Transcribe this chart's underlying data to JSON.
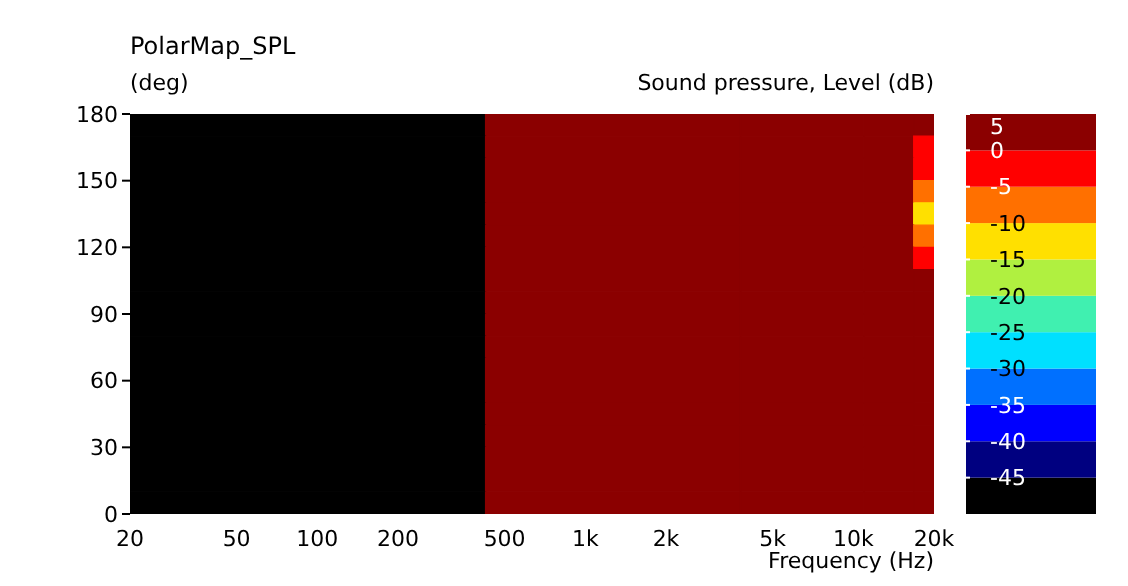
{
  "chart_data": {
    "type": "heatmap",
    "title": "PolarMap_SPL",
    "ylabel": "(deg)",
    "xlabel": "Frequency  (Hz)",
    "clabel": "Sound pressure, Level  (dB)",
    "log": "x",
    "x": [
      100,
      1800,
      8000,
      15000,
      18800
    ],
    "xlim": [
      20,
      20000
    ],
    "xticks": [
      20,
      50,
      100,
      200,
      500,
      {
        "value": 1000,
        "label": "1k"
      },
      {
        "value": 2000,
        "label": "2k"
      },
      {
        "value": 5000,
        "label": "5k"
      },
      {
        "value": 10000,
        "label": "10k"
      },
      {
        "value": 20000,
        "label": "20k"
      }
    ],
    "ylim": [
      0,
      180
    ],
    "yticks": [
      0,
      30,
      60,
      90,
      120,
      150,
      180
    ],
    "clim": [
      -50,
      5
    ],
    "cticks": [
      -45,
      -40,
      -35,
      -30,
      -25,
      -20,
      -15,
      -10,
      -5,
      0,
      5
    ],
    "colors": [
      "#000000",
      "#000080",
      "#0000ff",
      "#0070ff",
      "#00e0ff",
      "#40f0b0",
      "#b0f040",
      "#ffe000",
      "#ff7000",
      "#ff0000",
      "#8b0000"
    ],
    "cells": [
      [
        -50,
        3,
        3,
        3,
        3
      ],
      [
        -50,
        3,
        3,
        3,
        -3
      ],
      [
        -50,
        3,
        3,
        3,
        -3
      ],
      [
        -50,
        3,
        3,
        3,
        -7
      ],
      [
        -50,
        3,
        3,
        3,
        -12
      ],
      [
        -50,
        3,
        3,
        3,
        -7
      ],
      [
        -50,
        3,
        3,
        3,
        -3
      ],
      [
        -50,
        3,
        3,
        3,
        3
      ],
      [
        -50,
        3,
        3,
        3,
        3
      ],
      [
        -50,
        3,
        3,
        3,
        3
      ],
      [
        -50,
        3,
        3,
        3,
        3
      ],
      [
        -50,
        3,
        3,
        3,
        3
      ],
      [
        -50,
        3,
        3,
        3,
        3
      ],
      [
        -50,
        3,
        3,
        3,
        3
      ],
      [
        -50,
        3,
        3,
        3,
        3
      ],
      [
        -50,
        3,
        3,
        3,
        3
      ],
      [
        -50,
        3,
        3,
        3,
        3
      ],
      [
        -50,
        3,
        3,
        3,
        3
      ]
    ]
  }
}
